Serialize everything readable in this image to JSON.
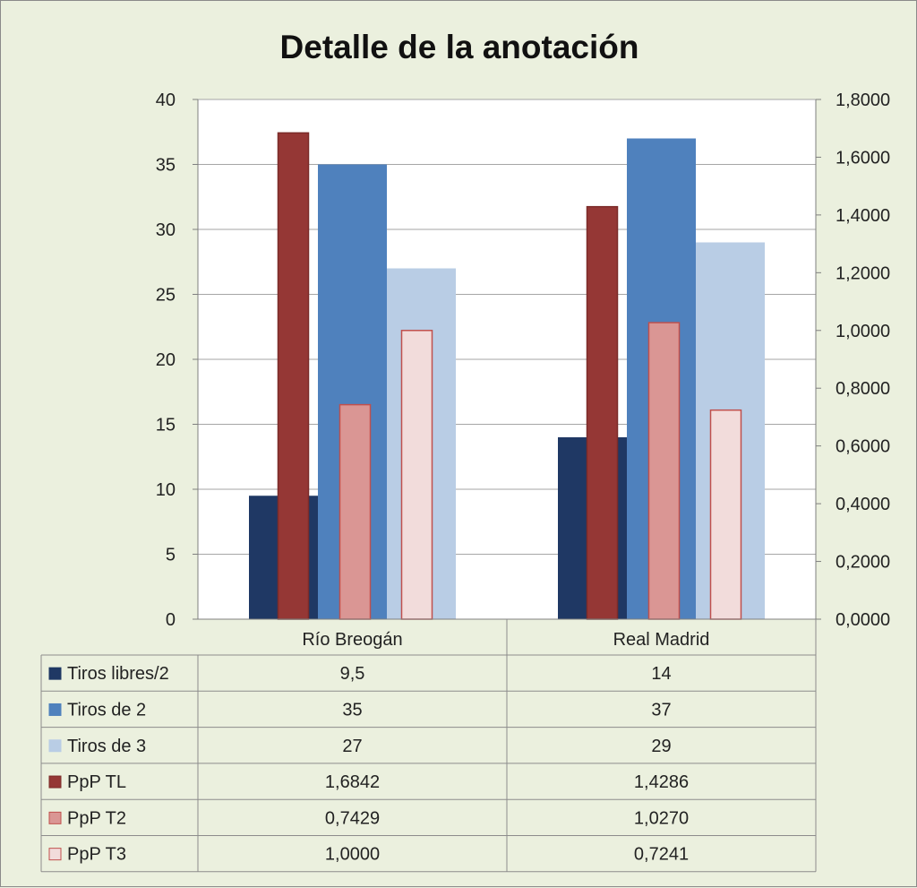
{
  "chart_data": {
    "type": "bar",
    "title": "Detalle de la anotación",
    "categories": [
      "Río Breogán",
      "Real Madrid"
    ],
    "y_left": {
      "ylim": [
        0,
        40
      ],
      "ticks": [
        0,
        5,
        10,
        15,
        20,
        25,
        30,
        35,
        40
      ],
      "tick_labels": [
        "0",
        "5",
        "10",
        "15",
        "20",
        "25",
        "30",
        "35",
        "40"
      ]
    },
    "y_right": {
      "ylim": [
        0,
        1.8
      ],
      "ticks": [
        0,
        0.2,
        0.4,
        0.6,
        0.8,
        1.0,
        1.2,
        1.4,
        1.6,
        1.8
      ],
      "tick_labels": [
        "0,0000",
        "0,2000",
        "0,4000",
        "0,6000",
        "0,8000",
        "1,0000",
        "1,2000",
        "1,4000",
        "1,6000",
        "1,8000"
      ]
    },
    "grid": true,
    "legend": "data-table-below",
    "series": [
      {
        "name": "Tiros libres/2",
        "axis": "left",
        "group": "wide",
        "color": "#1f3864",
        "stroke": "#1f3864",
        "values": [
          9.5,
          14
        ],
        "labels": [
          "9,5",
          "14"
        ]
      },
      {
        "name": "Tiros de 2",
        "axis": "left",
        "group": "wide",
        "color": "#4f81bd",
        "stroke": "#4f81bd",
        "values": [
          35,
          37
        ],
        "labels": [
          "35",
          "37"
        ]
      },
      {
        "name": "Tiros de 3",
        "axis": "left",
        "group": "wide",
        "color": "#b9cde5",
        "stroke": "#b9cde5",
        "values": [
          27,
          29
        ],
        "labels": [
          "27",
          "29"
        ]
      },
      {
        "name": "PpP TL",
        "axis": "right",
        "group": "narrow",
        "color": "#953735",
        "stroke": "#7b2b29",
        "values": [
          1.6842,
          1.4286
        ],
        "labels": [
          "1,6842",
          "1,4286"
        ]
      },
      {
        "name": "PpP T2",
        "axis": "right",
        "group": "narrow",
        "color": "#da9694",
        "stroke": "#c0504d",
        "values": [
          0.7429,
          1.027
        ],
        "labels": [
          "0,7429",
          "1,0270"
        ]
      },
      {
        "name": "PpP T3",
        "axis": "right",
        "group": "narrow",
        "color": "#f2dcdb",
        "stroke": "#c0504d",
        "values": [
          1.0,
          0.7241
        ],
        "labels": [
          "1,0000",
          "0,7241"
        ]
      }
    ]
  }
}
